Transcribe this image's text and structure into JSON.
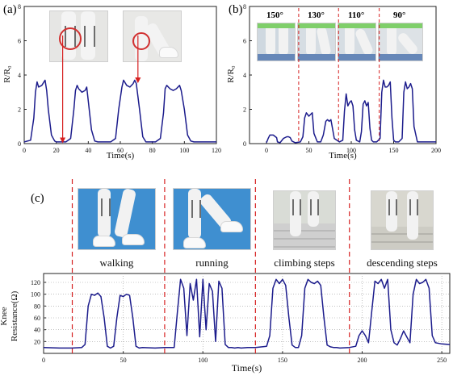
{
  "panels": {
    "a": {
      "label": "(a)"
    },
    "b": {
      "label": "(b)"
    },
    "c": {
      "label": "(c)"
    }
  },
  "panel_b_angles": [
    "150°",
    "130°",
    "110°",
    "90°"
  ],
  "panel_c_activities": [
    "walking",
    "running",
    "climbing steps",
    "descending steps"
  ],
  "colors": {
    "line": "#1c1c8c",
    "divider": "#d62020",
    "arrow": "#d62020"
  },
  "chart_data": [
    {
      "id": "a",
      "type": "line",
      "title": "",
      "xlabel": "Time(s)",
      "ylabel": "R/R₀",
      "xlim": [
        0,
        120
      ],
      "ylim": [
        0,
        8
      ],
      "xticks": [
        0,
        20,
        40,
        60,
        80,
        100,
        120
      ],
      "yticks": [
        0,
        2,
        4,
        6,
        8
      ],
      "series": [
        {
          "x": [
            0,
            4,
            6,
            7,
            8,
            9,
            11,
            13,
            14,
            15,
            17,
            19,
            20,
            26,
            29,
            31,
            32,
            33,
            34,
            36,
            38,
            39,
            40,
            42,
            44,
            46,
            54,
            57,
            59,
            61,
            62,
            64,
            66,
            68,
            69,
            70,
            72,
            74,
            76,
            82,
            85,
            87,
            88,
            89,
            91,
            93,
            95,
            97,
            98,
            100,
            102,
            104,
            106,
            120
          ],
          "y": [
            0.1,
            0.2,
            1.5,
            3.0,
            3.6,
            3.3,
            3.4,
            3.7,
            3.1,
            2.0,
            0.5,
            0.15,
            0.1,
            0.1,
            0.3,
            2.0,
            3.1,
            3.4,
            3.2,
            3.0,
            3.1,
            3.3,
            2.5,
            0.8,
            0.15,
            0.1,
            0.1,
            0.3,
            2.0,
            3.3,
            3.7,
            3.4,
            3.3,
            3.5,
            3.7,
            3.5,
            2.0,
            0.4,
            0.1,
            0.1,
            0.3,
            1.8,
            3.2,
            3.4,
            3.2,
            3.1,
            3.2,
            3.4,
            3.1,
            2.0,
            0.5,
            0.15,
            0.1,
            0.1
          ]
        }
      ],
      "annotations": [
        {
          "type": "arrow",
          "x": 24,
          "y": 0.1
        },
        {
          "type": "arrow",
          "x": 71,
          "y": 3.6
        }
      ]
    },
    {
      "id": "b",
      "type": "line",
      "title": "",
      "xlabel": "Time(s)",
      "ylabel": "R/R₀",
      "xlim": [
        -20,
        200
      ],
      "ylim": [
        0,
        8
      ],
      "xticks": [
        0,
        50,
        100,
        150,
        200
      ],
      "yticks": [
        0,
        2,
        4,
        6,
        8
      ],
      "dividers_x": [
        38,
        85,
        133
      ],
      "series": [
        {
          "x": [
            0,
            2,
            4,
            8,
            12,
            13,
            16,
            20,
            24,
            26,
            28,
            30,
            34,
            40,
            43,
            45,
            47,
            50,
            52,
            54,
            56,
            60,
            64,
            67,
            70,
            72,
            74,
            76,
            80,
            86,
            90,
            92,
            94,
            96,
            98,
            100,
            102,
            104,
            106,
            110,
            112,
            114,
            116,
            118,
            120,
            122,
            124,
            126,
            130,
            134,
            136,
            138,
            140,
            142,
            144,
            146,
            148,
            150,
            152,
            156,
            160,
            162,
            164,
            166,
            168,
            170,
            172,
            174,
            178,
            200
          ],
          "y": [
            0.05,
            0.3,
            0.5,
            0.5,
            0.35,
            0.1,
            0.05,
            0.3,
            0.4,
            0.4,
            0.35,
            0.15,
            0.05,
            0.1,
            0.4,
            1.5,
            1.8,
            1.6,
            1.7,
            1.8,
            0.6,
            0.1,
            0.1,
            0.5,
            1.3,
            1.4,
            1.3,
            1.4,
            0.3,
            0.1,
            0.2,
            1.9,
            2.9,
            2.2,
            2.4,
            2.5,
            2.2,
            0.8,
            0.2,
            0.1,
            0.7,
            2.3,
            2.5,
            2.2,
            2.4,
            0.9,
            0.2,
            0.1,
            0.1,
            0.3,
            3.0,
            3.7,
            3.3,
            3.3,
            3.4,
            3.6,
            1.5,
            0.2,
            0.1,
            0.1,
            0.3,
            3.0,
            3.6,
            3.2,
            3.3,
            3.5,
            3.2,
            1.0,
            0.1,
            0.1
          ]
        }
      ]
    },
    {
      "id": "c",
      "type": "line",
      "title": "",
      "xlabel": "Time(s)",
      "ylabel": "Knee Resistance(Ω)",
      "xlim": [
        0,
        255
      ],
      "ylim": [
        0,
        135
      ],
      "xticks": [
        0,
        50,
        100,
        150,
        200,
        250
      ],
      "yticks": [
        20,
        40,
        60,
        80,
        100,
        120
      ],
      "dividers_x": [
        18,
        76,
        133,
        192
      ],
      "series": [
        {
          "x": [
            0,
            10,
            18,
            24,
            26,
            28,
            30,
            32,
            34,
            36,
            38,
            40,
            42,
            44,
            46,
            48,
            50,
            52,
            54,
            56,
            58,
            60,
            62,
            70,
            76,
            82,
            84,
            86,
            88,
            90,
            92,
            94,
            96,
            98,
            100,
            102,
            104,
            106,
            108,
            110,
            112,
            114,
            116,
            118,
            120,
            122,
            124,
            128,
            133,
            140,
            142,
            144,
            146,
            148,
            150,
            152,
            154,
            156,
            158,
            160,
            162,
            164,
            166,
            168,
            170,
            172,
            174,
            176,
            178,
            180,
            182,
            184,
            186,
            192,
            196,
            198,
            200,
            202,
            204,
            206,
            208,
            210,
            212,
            214,
            216,
            218,
            220,
            222,
            224,
            226,
            228,
            230,
            232,
            234,
            236,
            238,
            240,
            242,
            244,
            246,
            250,
            255
          ],
          "y": [
            10,
            9,
            9,
            10,
            15,
            80,
            100,
            98,
            102,
            96,
            60,
            12,
            9,
            12,
            60,
            98,
            96,
            100,
            98,
            60,
            12,
            9,
            10,
            9,
            10,
            10,
            70,
            125,
            110,
            30,
            118,
            90,
            125,
            28,
            125,
            40,
            118,
            105,
            20,
            122,
            110,
            15,
            10,
            10,
            9,
            10,
            9,
            10,
            10,
            12,
            30,
            110,
            125,
            118,
            125,
            115,
            60,
            14,
            10,
            10,
            30,
            110,
            125,
            120,
            118,
            122,
            115,
            60,
            14,
            11,
            10,
            10,
            9,
            10,
            12,
            30,
            38,
            30,
            18,
            70,
            122,
            118,
            125,
            110,
            125,
            40,
            18,
            14,
            25,
            38,
            28,
            18,
            100,
            125,
            118,
            120,
            125,
            110,
            30,
            18,
            16,
            15
          ]
        }
      ]
    }
  ]
}
